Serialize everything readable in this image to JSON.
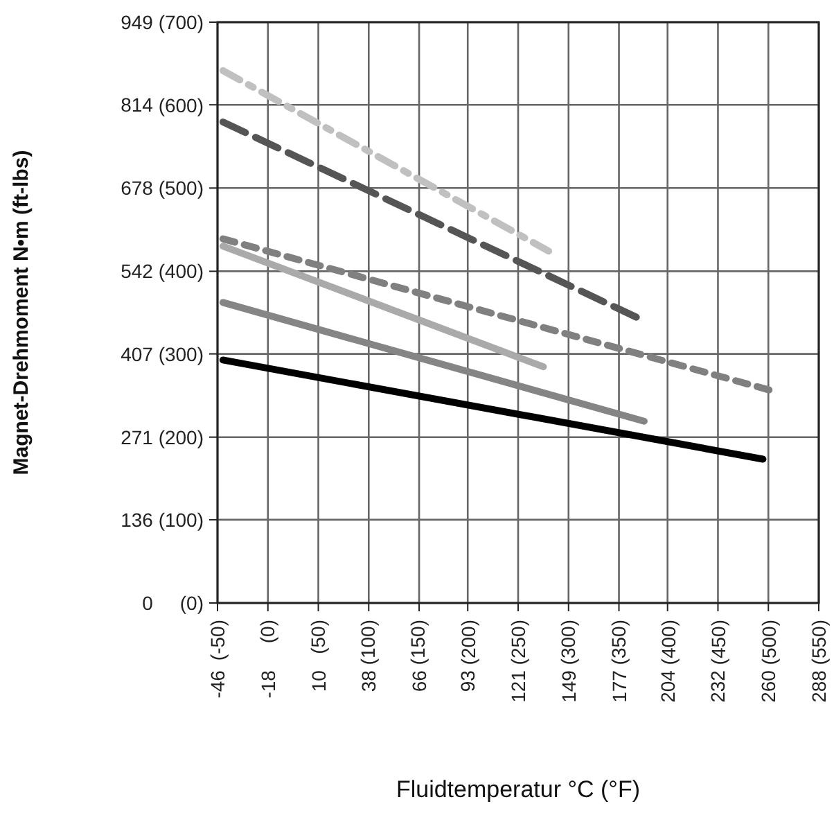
{
  "chart_data": {
    "type": "line",
    "xlabel": "Fluidtemperatur °C (°F)",
    "ylabel": "Magnet-Drehmoment N•m (ft-lbs)",
    "xlim": [
      -46,
      288
    ],
    "ylim": [
      0,
      949
    ],
    "x2lim": [
      -50,
      550
    ],
    "y2lim": [
      0,
      700
    ],
    "xticks": [
      -46,
      -18,
      10,
      38,
      66,
      93,
      121,
      149,
      177,
      204,
      232,
      260,
      288
    ],
    "x2ticks": [
      {
        "value": -50,
        "label": "(-50)"
      },
      {
        "value": 0,
        "label": "(0)"
      },
      {
        "value": 50,
        "label": "(50)"
      },
      {
        "value": 100,
        "label": "(100)"
      },
      {
        "value": 150,
        "label": "(150)"
      },
      {
        "value": 200,
        "label": "(200)"
      },
      {
        "value": 250,
        "label": "(250)"
      },
      {
        "value": 300,
        "label": "(300)"
      },
      {
        "value": 350,
        "label": "(350)"
      },
      {
        "value": 400,
        "label": "(400)"
      },
      {
        "value": 450,
        "label": "(450)"
      },
      {
        "value": 500,
        "label": "(500)"
      },
      {
        "value": 550,
        "label": "(550)"
      }
    ],
    "yticks": [
      0,
      136,
      271,
      407,
      542,
      678,
      814,
      949
    ],
    "y2ticks": [
      {
        "value": 0,
        "label": "(0)"
      },
      {
        "value": 100,
        "label": "(100)"
      },
      {
        "value": 200,
        "label": "(200)"
      },
      {
        "value": 300,
        "label": "(300)"
      },
      {
        "value": 400,
        "label": "(400)"
      },
      {
        "value": 500,
        "label": "(500)"
      },
      {
        "value": 600,
        "label": "(600)"
      },
      {
        "value": 700,
        "label": "(700)"
      }
    ],
    "grid": true,
    "marker": "none",
    "series": [
      {
        "color": "#c0c0c0",
        "line_style": "dashdot",
        "x": [
          -43,
          138
        ],
        "values": [
          870,
          575
        ]
      },
      {
        "color": "#555555",
        "line_style": "dashed",
        "x": [
          -43,
          191
        ],
        "values": [
          786,
          461
        ]
      },
      {
        "color": "#808080",
        "line_style": "dotted",
        "x": [
          -43,
          263
        ],
        "values": [
          595,
          346
        ]
      },
      {
        "color": "#aaaaaa",
        "line_style": "solid",
        "x": [
          -43,
          135
        ],
        "values": [
          583,
          386
        ]
      },
      {
        "color": "#858585",
        "line_style": "solid",
        "x": [
          -43,
          191
        ],
        "values": [
          491,
          297
        ]
      },
      {
        "color": "#000000",
        "line_style": "solid",
        "x": [
          -43,
          257
        ],
        "values": [
          397,
          235
        ]
      }
    ]
  }
}
